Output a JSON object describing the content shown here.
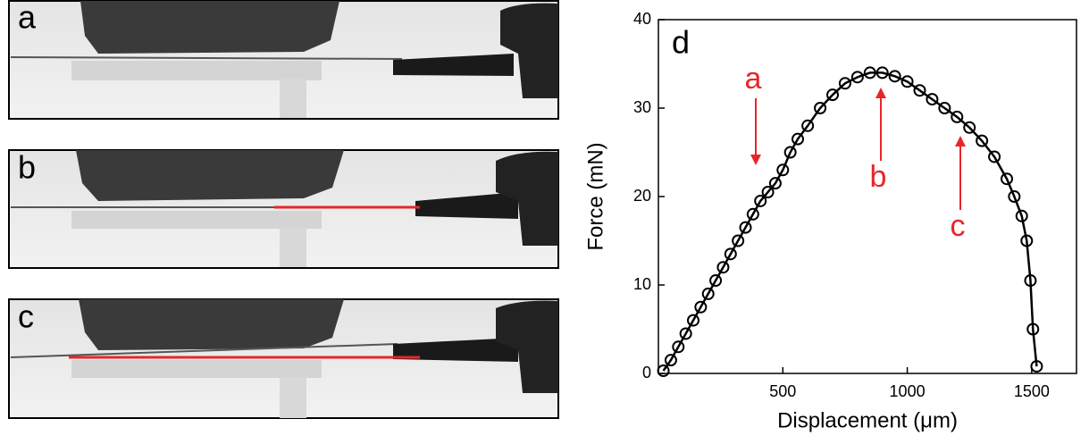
{
  "panels": [
    {
      "label": "a"
    },
    {
      "label": "b"
    },
    {
      "label": "c"
    }
  ],
  "chart_data": {
    "type": "scatter",
    "panel_label": "d",
    "x_label": "Displacement (μm)",
    "y_label": "Force (mN)",
    "x": [
      20,
      50,
      80,
      110,
      140,
      170,
      200,
      230,
      260,
      290,
      320,
      350,
      380,
      410,
      440,
      470,
      500,
      530,
      560,
      600,
      650,
      700,
      750,
      800,
      850,
      900,
      950,
      1000,
      1050,
      1100,
      1150,
      1200,
      1250,
      1300,
      1350,
      1400,
      1430,
      1460,
      1480,
      1495,
      1505,
      1520
    ],
    "values": [
      0.3,
      1.5,
      3,
      4.5,
      6,
      7.5,
      9,
      10.5,
      12,
      13.5,
      15,
      16.5,
      18,
      19.5,
      20.5,
      21.5,
      23,
      25,
      26.5,
      28,
      30,
      31.5,
      32.8,
      33.5,
      34,
      34,
      33.6,
      33,
      32,
      31,
      30,
      29,
      27.8,
      26.3,
      24.5,
      22,
      20,
      17.8,
      15,
      10.5,
      5,
      0.8
    ],
    "color": "#000000",
    "xlim": [
      0,
      1680
    ],
    "xticks": [
      500,
      1000,
      1500
    ],
    "ylim": [
      0,
      40
    ],
    "yticks": [
      0,
      10,
      20,
      30,
      40
    ],
    "annotations": [
      {
        "text": "a"
      },
      {
        "text": "b"
      },
      {
        "text": "c"
      }
    ],
    "annotation_color": "#e8262a"
  }
}
